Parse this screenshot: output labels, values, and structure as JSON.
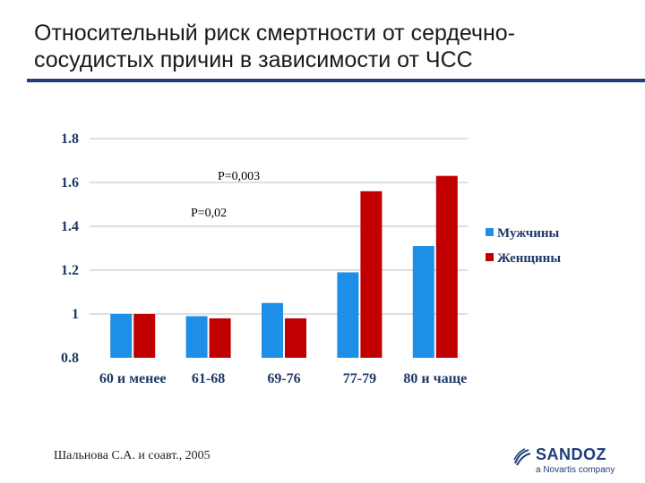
{
  "title": "Относительный риск смертности от сердечно-сосудистых причин в зависимости от ЧСС",
  "source": "Шальнова С.А. и соавт., 2005",
  "logo": {
    "brand": "SANDOZ",
    "sub": "a Novartis company"
  },
  "colors": {
    "title_rule": "#1f3f7a",
    "men": "#1e8fe6",
    "women": "#c00000",
    "grid": "#bfbfbf"
  },
  "chart_data": {
    "type": "bar",
    "categories": [
      "60 и менее",
      "61-68",
      "69-76",
      "77-79",
      "80 и чаще"
    ],
    "series": [
      {
        "name": "Мужчины",
        "values": [
          1.0,
          0.99,
          1.05,
          1.19,
          1.31
        ]
      },
      {
        "name": "Женщины",
        "values": [
          1.0,
          0.98,
          0.98,
          1.56,
          1.63
        ]
      }
    ],
    "ylim": [
      0.8,
      1.8
    ],
    "yticks": [
      "0.8",
      "1",
      "1.2",
      "1.4",
      "1.6",
      "1.8"
    ],
    "grid": true,
    "legend": "right",
    "annotations": [
      "P=0,003",
      "P=0,02"
    ]
  }
}
